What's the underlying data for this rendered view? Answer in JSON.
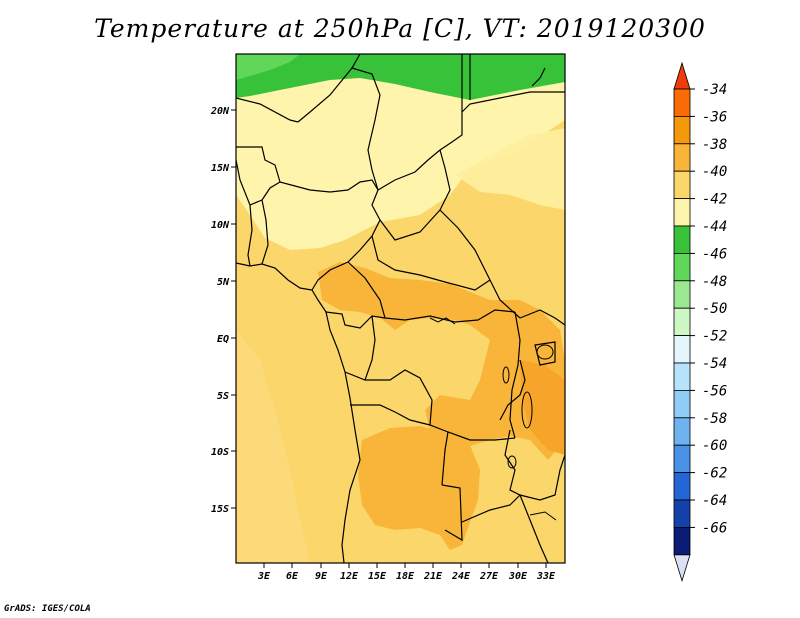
{
  "title": "Temperature at 250hPa [C], VT: 2019120300",
  "footer": "GrADS: IGES/COLA",
  "map": {
    "lat_labels": [
      "20N",
      "15N",
      "10N",
      "5N",
      "EQ",
      "5S",
      "10S",
      "15S"
    ],
    "lon_labels": [
      "3E",
      "6E",
      "9E",
      "12E",
      "15E",
      "18E",
      "21E",
      "24E",
      "27E",
      "30E",
      "33E"
    ]
  },
  "legend": {
    "labels": [
      "-34",
      "-36",
      "-38",
      "-40",
      "-42",
      "-44",
      "-46",
      "-48",
      "-50",
      "-52",
      "-54",
      "-56",
      "-58",
      "-60",
      "-62",
      "-64",
      "-66"
    ],
    "colors": [
      "#f03c0a",
      "#fa6a05",
      "#f49a0a",
      "#f8b53a",
      "#fbd66a",
      "#fef4ac",
      "#37c23a",
      "#61d75a",
      "#9ae991",
      "#cef7c5",
      "#e4f6fc",
      "#b6e2fb",
      "#8fccf6",
      "#6eb3f0",
      "#4a92e6",
      "#2566d7",
      "#1441aa",
      "#0a1c75",
      "#dce0f6"
    ]
  }
}
